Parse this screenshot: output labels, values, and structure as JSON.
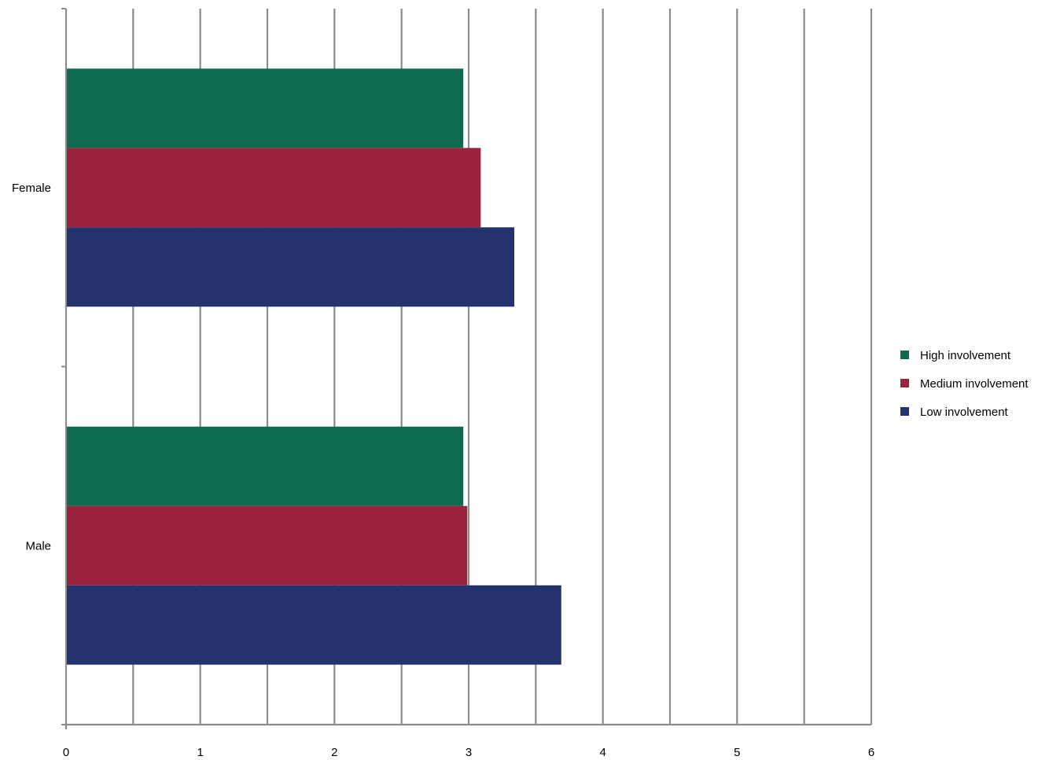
{
  "chart_data": {
    "type": "bar",
    "orientation": "horizontal",
    "title": "",
    "xlabel": "",
    "ylabel": "",
    "categories": [
      "Female",
      "Male"
    ],
    "x_ticks": [
      "0",
      "1",
      "2",
      "3",
      "4",
      "5",
      "6"
    ],
    "xlim": [
      0,
      6
    ],
    "minor_gridlines": true,
    "grid": true,
    "legend_position": "right",
    "series": [
      {
        "name": "High involvement",
        "color": "#0f6b50",
        "values": [
          2.96,
          2.96
        ]
      },
      {
        "name": "Medium involvement",
        "color": "#9b223d",
        "values": [
          3.09,
          2.99
        ]
      },
      {
        "name": "Low involvement",
        "color": "#24336e",
        "values": [
          3.34,
          3.69
        ]
      }
    ]
  }
}
